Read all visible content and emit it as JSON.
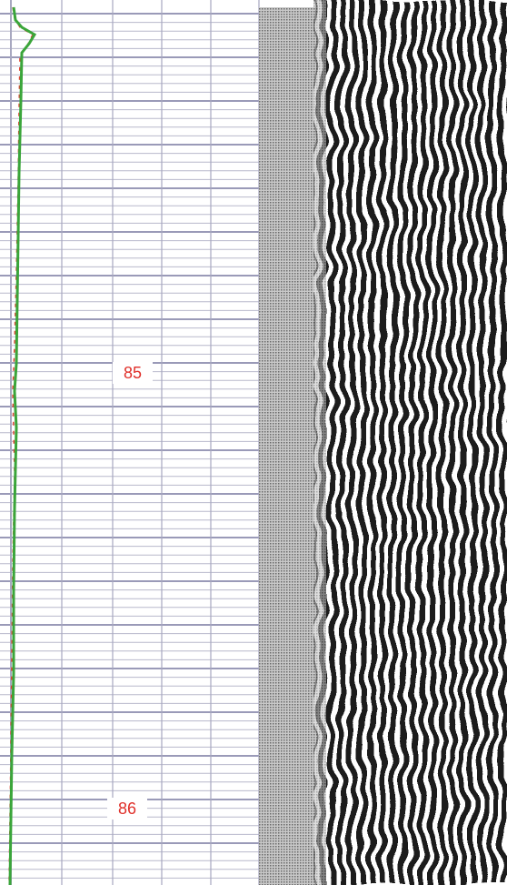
{
  "depth_labels": [
    "85",
    "86"
  ]
}
